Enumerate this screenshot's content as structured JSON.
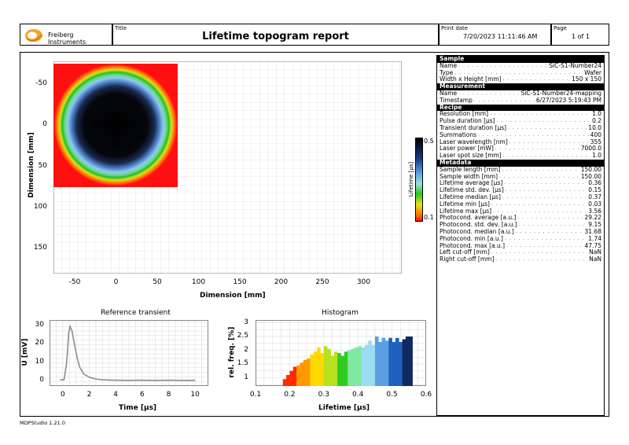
{
  "header": {
    "brand": "Freiberg Instruments",
    "title_label": "Title",
    "title": "Lifetime topogram report",
    "print_date_label": "Print date",
    "print_date": "7/20/2023 11:11:46 AM",
    "page_label": "Page",
    "page": "1 of 1"
  },
  "topogram": {
    "x_label": "Dimension [mm]",
    "y_label": "Dimension [mm]",
    "x_ticks": [
      "-50",
      "0",
      "50",
      "100",
      "150",
      "200",
      "250",
      "300"
    ],
    "y_ticks": [
      "-50",
      "0",
      "50",
      "100",
      "150"
    ],
    "colorbar_label": "Lifetime [µs]",
    "colorbar_max": "0.5",
    "colorbar_min": "0.1",
    "colors": {
      "ring_outer": "#ff1a1a",
      "ring_mid": "#27c820",
      "ring_inner": "#5aa8e8",
      "core": "#000000",
      "background": "#ff1010"
    }
  },
  "sidebar": {
    "sections": [
      {
        "title": "Sample",
        "rows": [
          {
            "k": "Name",
            "v": "SiC-S1-Number24"
          },
          {
            "k": "Type",
            "v": "Wafer"
          },
          {
            "k": "Width x Height [mm]",
            "v": "150 x 150"
          }
        ]
      },
      {
        "title": "Measurement",
        "rows": [
          {
            "k": "Name",
            "v": "SiC-S1-Number24-mapping"
          },
          {
            "k": "Timestamp",
            "v": "6/27/2023 5:19:43 PM"
          }
        ]
      },
      {
        "title": "Recipe",
        "rows": [
          {
            "k": "Resolution [mm]",
            "v": "1.0"
          },
          {
            "k": "Pulse duration [µs]",
            "v": "0.2"
          },
          {
            "k": "Transient duration [µs]",
            "v": "10.0"
          },
          {
            "k": "Summations",
            "v": "400"
          },
          {
            "k": "Laser wavelength [nm]",
            "v": "355"
          },
          {
            "k": "Laser power [mW]",
            "v": "7000.0"
          },
          {
            "k": "Laser spot size [mm]",
            "v": "1.0"
          }
        ]
      },
      {
        "title": "Metadata",
        "rows": [
          {
            "k": "Sample length [mm]",
            "v": "150.00"
          },
          {
            "k": "Sample width [mm]",
            "v": "150.00"
          },
          {
            "k": "Lifetime average [µs]",
            "v": "0.36"
          },
          {
            "k": "Lifetime std. dev. [µs]",
            "v": "0.15"
          },
          {
            "k": "Lifetime median [µs]",
            "v": "0.37"
          },
          {
            "k": "Lifetime min [µs]",
            "v": "0.03"
          },
          {
            "k": "Lifetime max [µs]",
            "v": "3.56"
          },
          {
            "k": "Photocond. average [a.u.]",
            "v": "29.22"
          },
          {
            "k": "Photocond. std. dev. [a.u.]",
            "v": "9.15"
          },
          {
            "k": "Photocond. median [a.u.]",
            "v": "31.68"
          },
          {
            "k": "Photocond. min [a.u.]",
            "v": "1.74"
          },
          {
            "k": "Photocond. max [a.u.]",
            "v": "47.75"
          },
          {
            "k": "Left cut-off [mm]",
            "v": "NaN"
          },
          {
            "k": "Right cut-off [mm]",
            "v": "NaN"
          }
        ]
      }
    ]
  },
  "chart_data": [
    {
      "type": "line",
      "title": "Reference transient",
      "xlabel": "Time [µs]",
      "ylabel": "U [mV]",
      "xlim": [
        -1,
        11
      ],
      "ylim": [
        -3,
        33
      ],
      "x_ticks": [
        "0",
        "2",
        "4",
        "6",
        "8",
        "10"
      ],
      "y_ticks": [
        "0",
        "10",
        "20",
        "30"
      ],
      "x": [
        -0.2,
        0.1,
        0.3,
        0.45,
        0.55,
        0.7,
        0.9,
        1.1,
        1.3,
        1.6,
        2.0,
        2.5,
        3.0,
        4.0,
        5.0,
        6.0,
        7.0,
        8.0,
        9.0,
        10.0
      ],
      "y": [
        0.3,
        0.5,
        10,
        26,
        29.5,
        27,
        19,
        12,
        7,
        3.5,
        1.8,
        0.8,
        0.4,
        0.2,
        0.1,
        0.2,
        0.1,
        0.2,
        0.1,
        0.1
      ],
      "color": "#8c8c8c"
    },
    {
      "type": "bar",
      "title": "Histogram",
      "xlabel": "Lifetime [µs]",
      "ylabel": "rel. freq. [%]",
      "xlim": [
        0.1,
        0.6
      ],
      "ylim": [
        0.7,
        3.1
      ],
      "x_ticks": [
        "0.1",
        "0.2",
        "0.3",
        "0.4",
        "0.5",
        "0.6"
      ],
      "y_ticks": [
        "1",
        "1.5",
        "2",
        "2.5",
        "3"
      ],
      "bin_start": 0.18,
      "bin_width": 0.01,
      "values": [
        0.95,
        1.1,
        1.25,
        1.4,
        1.45,
        1.55,
        1.65,
        1.7,
        1.85,
        1.95,
        2.1,
        1.9,
        2.15,
        2.05,
        1.8,
        1.95,
        1.9,
        1.8,
        1.95,
        2.0,
        2.05,
        2.1,
        2.15,
        2.1,
        2.2,
        2.35,
        2.2,
        2.5,
        2.3,
        2.45,
        2.35,
        2.45,
        2.3,
        2.45,
        2.3,
        2.4,
        2.5,
        2.5
      ],
      "colormap": [
        "#ff2a00",
        "#ff9a00",
        "#ffd800",
        "#b8e020",
        "#2ecc20",
        "#80e8a0",
        "#9adcf0",
        "#5aa0e0",
        "#2060c0",
        "#102a60"
      ]
    }
  ],
  "footer": {
    "version": "MDPStudio 1.21.0"
  }
}
